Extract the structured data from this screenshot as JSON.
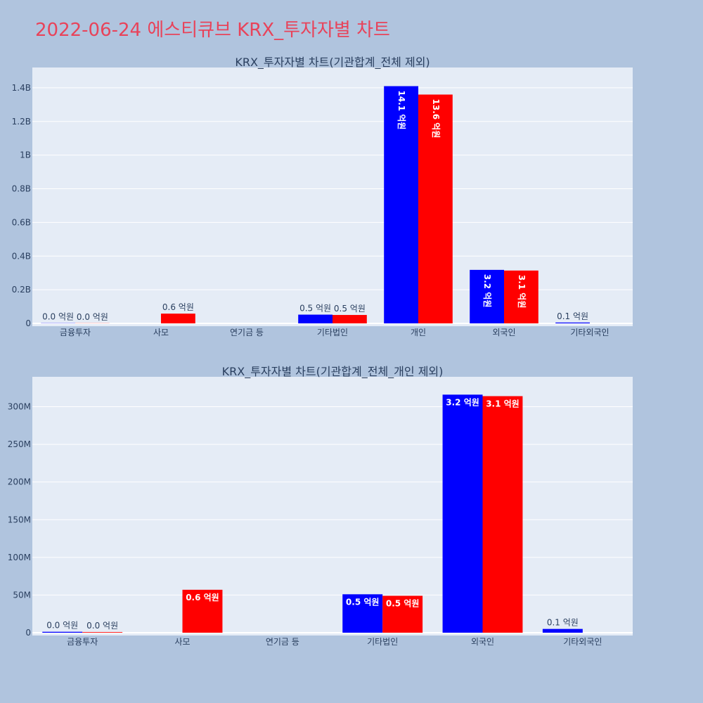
{
  "page_title": "2022-06-24 에스티큐브 KRX_투자자별 차트",
  "colors": {
    "series1": "#0000ff",
    "series2": "#ff0000",
    "plot_bg": "#e5ecf6",
    "page_bg": "#b0c4de",
    "title": "#e8435a"
  },
  "chart_data": [
    {
      "type": "bar",
      "title": "KRX_투자자별 차트(기관합계_전체 제외)",
      "categories": [
        "금융투자",
        "사모",
        "연기금 등",
        "기타법인",
        "개인",
        "외국인",
        "기타외국인"
      ],
      "series": [
        {
          "color": "#0000ff",
          "values": [
            1200000,
            null,
            null,
            52000000,
            1410000000,
            318000000,
            5000000
          ],
          "labels": [
            "0.0 억원",
            "",
            "",
            "0.5 억원",
            "14.1 억원",
            "3.2 억원",
            "0.1 억원"
          ]
        },
        {
          "color": "#ff0000",
          "values": [
            800000,
            58000000,
            null,
            50000000,
            1360000000,
            314000000,
            null
          ],
          "labels": [
            "0.0 억원",
            "0.6 억원",
            "",
            "0.5 억원",
            "13.6 억원",
            "3.1 억원",
            ""
          ]
        }
      ],
      "ylim": [
        0,
        1500000000.0
      ],
      "yticks": [
        0,
        200000000,
        400000000,
        600000000,
        800000000,
        1000000000,
        1200000000,
        1400000000
      ],
      "ytick_labels": [
        "0",
        "0.2B",
        "0.4B",
        "0.6B",
        "0.8B",
        "1B",
        "1.2B",
        "1.4B"
      ],
      "grid": true,
      "barmode": "group"
    },
    {
      "type": "bar",
      "title": "KRX_투자자별 차트(기관합계_전체_개인 제외)",
      "categories": [
        "금융투자",
        "사모",
        "연기금 등",
        "기타법인",
        "외국인",
        "기타외국인"
      ],
      "series": [
        {
          "color": "#0000ff",
          "values": [
            1200000,
            null,
            null,
            51000000,
            316000000,
            5000000
          ],
          "labels": [
            "0.0 억원",
            "",
            "",
            "0.5 억원",
            "3.2 억원",
            "0.1 억원"
          ]
        },
        {
          "color": "#ff0000",
          "values": [
            800000,
            57000000,
            null,
            49000000,
            314000000,
            null
          ],
          "labels": [
            "0.0 억원",
            "0.6 억원",
            "",
            "0.5 억원",
            "3.1 억원",
            ""
          ]
        }
      ],
      "ylim": [
        0,
        335000000
      ],
      "yticks": [
        0,
        50000000,
        100000000,
        150000000,
        200000000,
        250000000,
        300000000
      ],
      "ytick_labels": [
        "0",
        "50M",
        "100M",
        "150M",
        "200M",
        "250M",
        "300M"
      ],
      "grid": true,
      "barmode": "group"
    }
  ]
}
